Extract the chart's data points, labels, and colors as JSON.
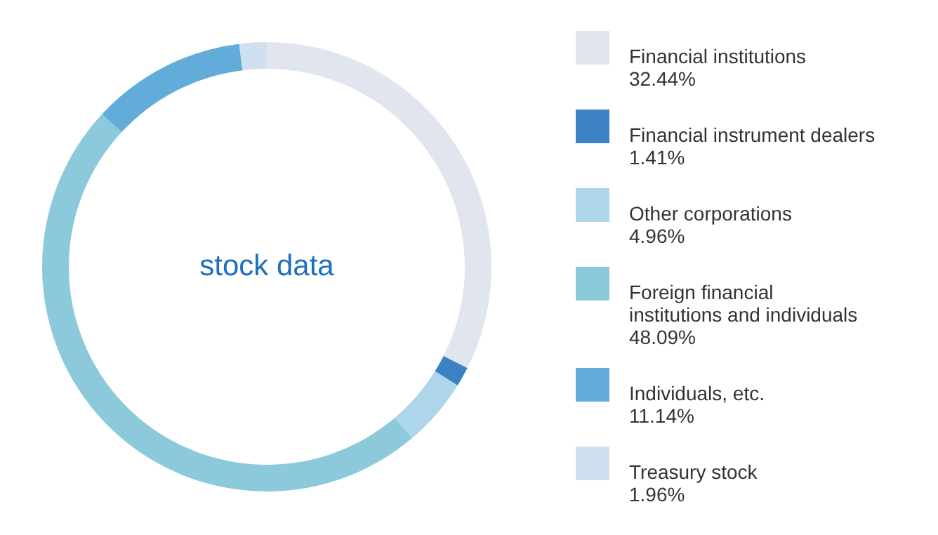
{
  "chart_data": {
    "type": "donut",
    "title": "stock data",
    "categories": [
      "Financial institutions",
      "Financial instrument dealers",
      "Other corporations",
      "Foreign financial institutions and individuals",
      "Individuals, etc.",
      "Treasury stock"
    ],
    "values": [
      32.44,
      1.41,
      4.96,
      48.09,
      11.14,
      1.96
    ],
    "value_labels": [
      "32.44%",
      "1.41%",
      "4.96%",
      "48.09%",
      "11.14%",
      "1.96%"
    ],
    "colors": [
      "#e1e6ee",
      "#3a82c4",
      "#aed6ea",
      "#8ccadb",
      "#62acd9",
      "#cfe0f0"
    ],
    "legend": "right"
  }
}
